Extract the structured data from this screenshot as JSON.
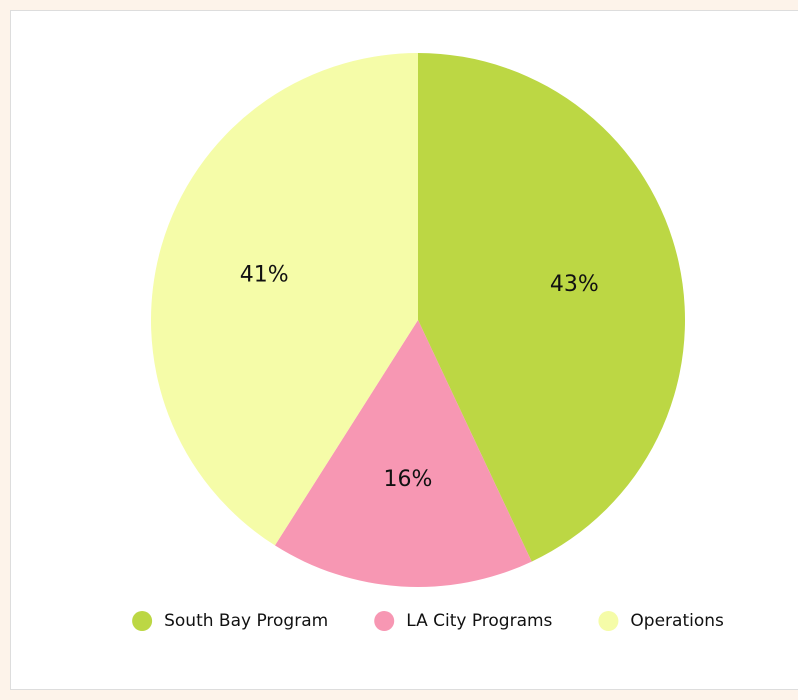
{
  "chart_data": {
    "type": "pie",
    "categories": [
      "South Bay Program",
      "LA City Programs",
      "Operations"
    ],
    "values": [
      43,
      16,
      41
    ],
    "value_labels": [
      "43%",
      "16%",
      "41%"
    ],
    "colors": [
      "#bcd744",
      "#f797b3",
      "#f5fca8"
    ],
    "legend": "bottom"
  }
}
